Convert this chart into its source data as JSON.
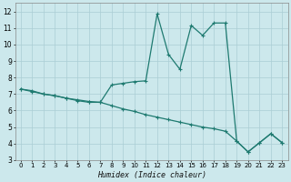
{
  "xlabel": "Humidex (Indice chaleur)",
  "ylabel": "",
  "bg_color": "#cce8ec",
  "grid_color": "#aacdd4",
  "line_color": "#1e7a70",
  "xlim": [
    -0.5,
    23.5
  ],
  "ylim": [
    3,
    12.5
  ],
  "xticks": [
    0,
    1,
    2,
    3,
    4,
    5,
    6,
    7,
    8,
    9,
    10,
    11,
    12,
    13,
    14,
    15,
    16,
    17,
    18,
    19,
    20,
    21,
    22,
    23
  ],
  "yticks": [
    3,
    4,
    5,
    6,
    7,
    8,
    9,
    10,
    11,
    12
  ],
  "series1_x": [
    0,
    1,
    2,
    3,
    4,
    5,
    6,
    7,
    8,
    9,
    10,
    11,
    12,
    13,
    14,
    15,
    16,
    17,
    18,
    19,
    20,
    21,
    22,
    23
  ],
  "series1_y": [
    7.3,
    7.2,
    7.0,
    6.9,
    6.75,
    6.6,
    6.5,
    6.5,
    7.55,
    7.65,
    7.75,
    7.8,
    11.85,
    9.4,
    8.5,
    11.15,
    10.55,
    11.3,
    11.3,
    4.15,
    3.5,
    4.05,
    4.6,
    4.05
  ],
  "series2_x": [
    0,
    1,
    2,
    3,
    4,
    5,
    6,
    7,
    8,
    9,
    10,
    11,
    12,
    13,
    14,
    15,
    16,
    17,
    18,
    19,
    20,
    21,
    22,
    23
  ],
  "series2_y": [
    7.3,
    7.15,
    7.0,
    6.9,
    6.75,
    6.65,
    6.55,
    6.5,
    6.3,
    6.1,
    5.95,
    5.75,
    5.6,
    5.45,
    5.3,
    5.15,
    5.0,
    4.9,
    4.75,
    4.15,
    3.5,
    4.05,
    4.6,
    4.05
  ]
}
